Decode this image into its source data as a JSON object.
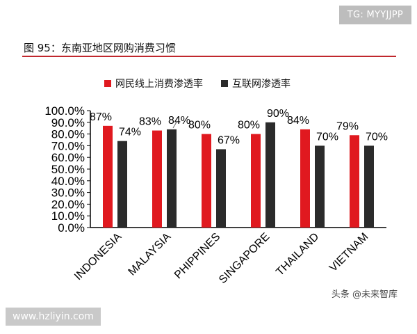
{
  "watermark": "TG: MYYJJPP",
  "figure_title": "图 95：东南亚地区网购消费习惯",
  "source_mark": "头条 @未来智库",
  "url": "www.hzliyin.com",
  "colors": {
    "title_rule": "#c0272d",
    "series_red": "#e0191f",
    "series_black": "#2b2b2b"
  },
  "chart_data": {
    "type": "bar",
    "categories": [
      "INDONESIA",
      "MALAYSIA",
      "PHIPPINES",
      "SINGAPORE",
      "THAILAND",
      "VIETNAM"
    ],
    "series": [
      {
        "name": "网民线上消费渗透率",
        "color": "#e0191f",
        "values": [
          87,
          83,
          80,
          80,
          84,
          79
        ]
      },
      {
        "name": "互联网渗透率",
        "color": "#2b2b2b",
        "values": [
          74,
          84,
          67,
          90,
          70,
          70
        ]
      }
    ],
    "data_labels": [
      [
        "87%",
        "83%",
        "80%",
        "80%",
        "84%",
        "79%"
      ],
      [
        "74%",
        "84%",
        "67%",
        "90%",
        "70%",
        "70%"
      ]
    ],
    "ylim": [
      0,
      100
    ],
    "y_ticks": [
      "0.0%",
      "10.0%",
      "20.0%",
      "30.0%",
      "40.0%",
      "50.0%",
      "60.0%",
      "70.0%",
      "80.0%",
      "90.0%",
      "100.0%"
    ],
    "grid": false,
    "legend_position": "top",
    "xlabel": "",
    "ylabel": ""
  }
}
